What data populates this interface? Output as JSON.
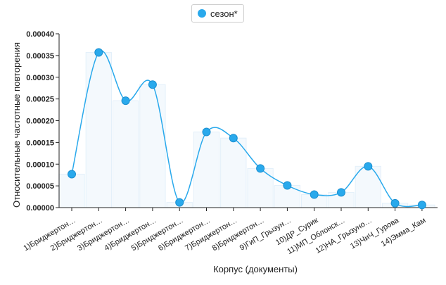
{
  "legend": {
    "label": "сезон*",
    "color": "#29a9ec"
  },
  "chart_data": {
    "type": "line",
    "xlabel": "Корпус (документы)",
    "ylabel": "Относительные частотные повторения",
    "ylim": [
      0,
      0.0004
    ],
    "yticks": [
      "0.00000",
      "0.00005",
      "0.00010",
      "0.00015",
      "0.00020",
      "0.00025",
      "0.00030",
      "0.00035",
      "0.00040"
    ],
    "categories": [
      "1)Бриджертон…",
      "2)Бриджертон…",
      "3)Бриджертон…",
      "4)Бриджертон…",
      "5)Бриджертон…",
      "6)Бриджертон…",
      "7)Бриджертон…",
      "8)Бриджертон…",
      "9)ГиП_Грызун…",
      "10)ДР_Сурик",
      "11)МП_Облонск…",
      "12)НА_Грызуно…",
      "13)ЧиЧ_Гурова",
      "14)Эмма_Кам"
    ],
    "series": [
      {
        "name": "сезон*",
        "color": "#29a9ec",
        "values": [
          7.7e-05,
          0.000357,
          0.000246,
          0.000283,
          1.2e-05,
          0.000174,
          0.00016,
          9e-05,
          5.1e-05,
          3e-05,
          3.5e-05,
          9.5e-05,
          1e-05,
          6e-06
        ]
      }
    ],
    "grid": false,
    "legend_position": "top-center"
  }
}
